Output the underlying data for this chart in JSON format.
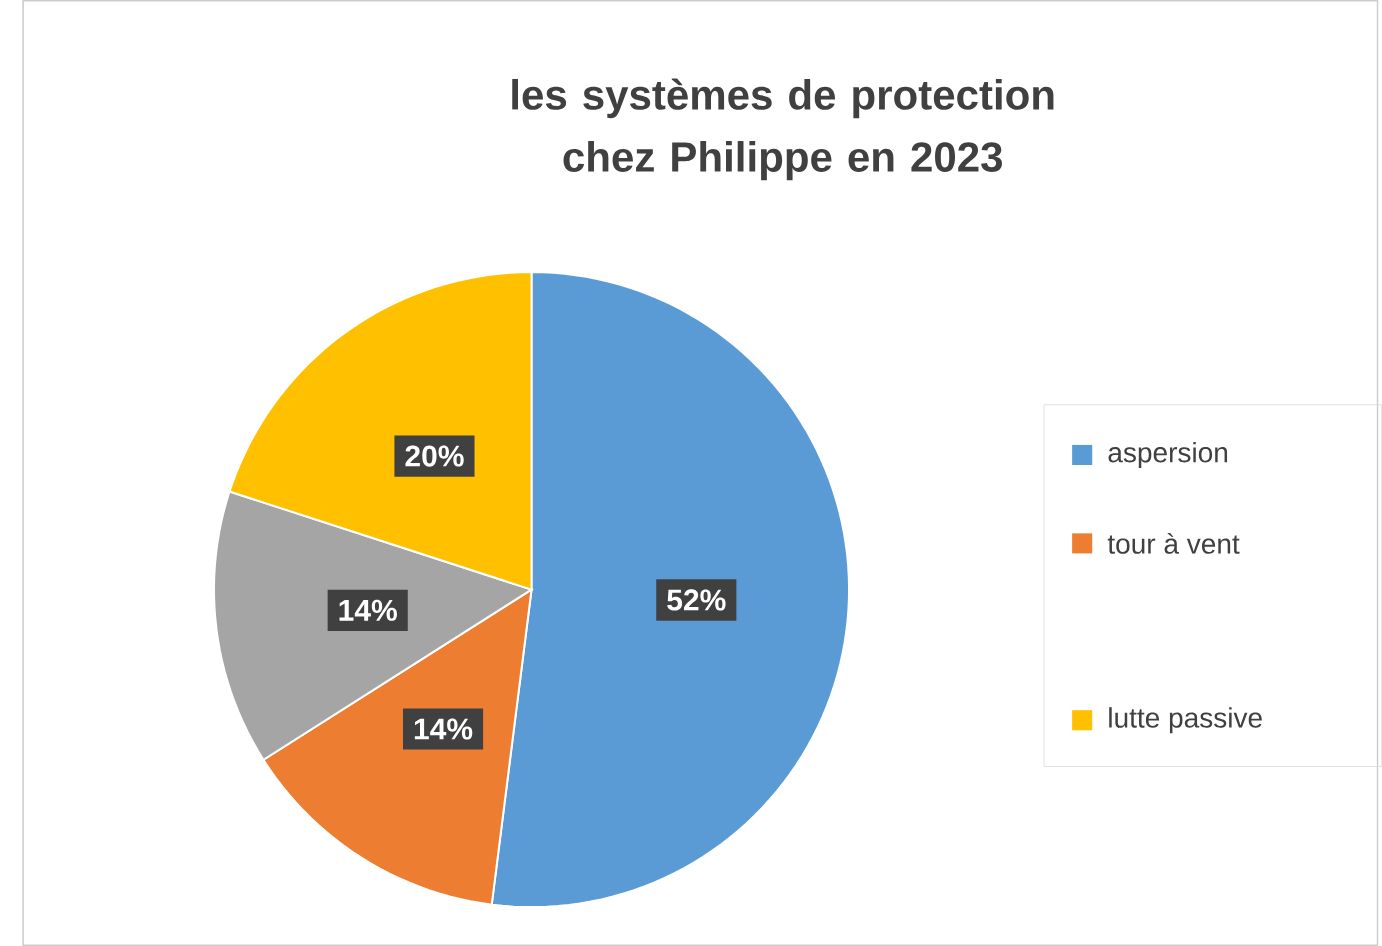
{
  "chart_data": {
    "type": "pie",
    "title": "les systèmes de protection chez Philippe en 2023",
    "categories": [
      "aspersion",
      "tour à vent",
      null,
      "lutte passive"
    ],
    "values": [
      52,
      14,
      14,
      20
    ],
    "colors": [
      "#5b9bd5",
      "#ed7d31",
      "#a5a5a5",
      "#ffc000"
    ],
    "value_labels": [
      "52%",
      "14%",
      "14%",
      "20%"
    ],
    "legend": "right"
  }
}
